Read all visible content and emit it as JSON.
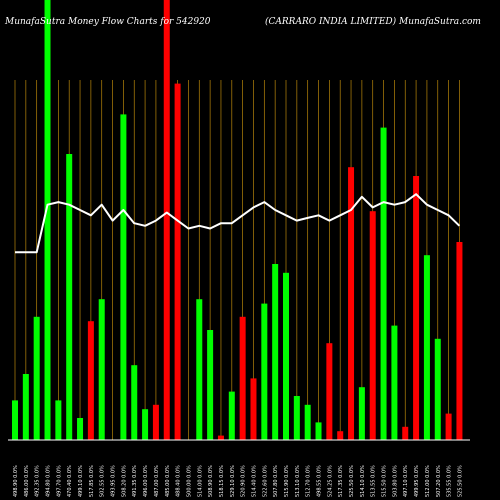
{
  "title_left": "MunafaSutra  Money Flow  Charts for 542920",
  "title_right": "(CARRARO INDIA LIMITED) MunafaSutra.com",
  "colors": {
    "background": "#000000",
    "grid": "#b8860b",
    "up": "#00ff00",
    "down": "#ff0000",
    "line": "#ffffff",
    "text": "#ffffff"
  },
  "chart_data": {
    "type": "bar",
    "ylim": [
      0,
      100
    ],
    "categories": [
      "498.90 0.0%",
      "486.00 0.0%",
      "492.35 0.0%",
      "494.80 0.0%",
      "497.70 0.0%",
      "470.40 0.0%",
      "499.10 0.0%",
      "517.85 0.0%",
      "502.55 0.0%",
      "493.95 0.0%",
      "508.20 0.0%",
      "491.35 0.0%",
      "496.00 0.0%",
      "487.00 0.0%",
      "485.00 0.0%",
      "488.40 0.0%",
      "500.00 0.0%",
      "514.00 0.0%",
      "508.90 0.0%",
      "518.15 0.0%",
      "529.10 0.0%",
      "520.90 0.0%",
      "514.40 0.0%",
      "522.60 0.0%",
      "507.80 0.0%",
      "515.90 0.0%",
      "513.10 0.0%",
      "512.70 0.0%",
      "498.55 0.0%",
      "524.25 0.0%",
      "517.35 0.0%",
      "525.50 0.0%",
      "514.10 0.0%",
      "513.55 0.0%",
      "515.50 0.0%",
      "503.80 0.0%",
      "497.10 0.0%",
      "499.95 0.0%",
      "512.00 0.0%",
      "507.20 0.0%",
      "535.55 0.0%",
      "525.50 0.0%"
    ],
    "bar_colors": [
      "up",
      "up",
      "up",
      "up",
      "up",
      "up",
      "up",
      "down",
      "up",
      "up",
      "up",
      "up",
      "up",
      "down",
      "down",
      "down",
      "up",
      "up",
      "up",
      "down",
      "up",
      "down",
      "down",
      "up",
      "up",
      "up",
      "up",
      "up",
      "up",
      "down",
      "down",
      "down",
      "up",
      "down",
      "up",
      "up",
      "down",
      "down",
      "up",
      "up",
      "down",
      "down"
    ],
    "values": [
      9,
      15,
      28,
      100,
      9,
      65,
      5,
      27,
      32,
      0,
      74,
      17,
      7,
      8,
      100,
      81,
      0,
      32,
      25,
      1,
      11,
      28,
      14,
      31,
      40,
      38,
      10,
      8,
      4,
      22,
      2,
      62,
      12,
      52,
      71,
      26,
      3,
      60,
      42,
      23,
      6,
      45
    ],
    "line": [
      59,
      59,
      59,
      77,
      78,
      77,
      75,
      73,
      77,
      71,
      75,
      70,
      69,
      71,
      74,
      71,
      68,
      69,
      68,
      70,
      70,
      73,
      76,
      78,
      75,
      73,
      71,
      72,
      73,
      71,
      73,
      75,
      80,
      76,
      78,
      77,
      78,
      81,
      77,
      75,
      73,
      69
    ]
  }
}
